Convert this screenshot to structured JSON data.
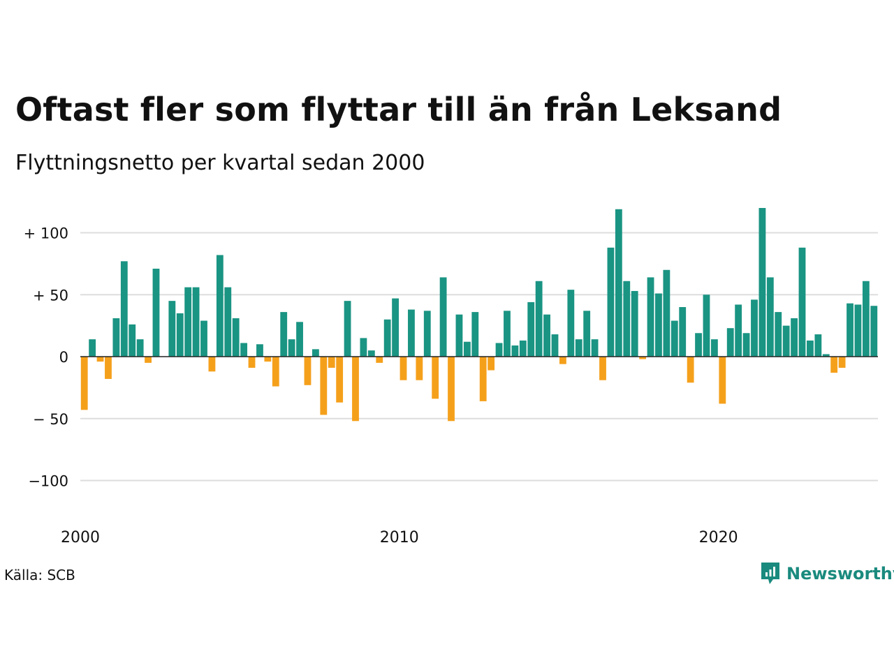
{
  "header": {
    "title": "Oftast fler som flyttar till än från Leksand",
    "subtitle": "Flyttningsnetto per kvartal sedan 2000"
  },
  "footer": {
    "source": "Källa: SCB",
    "brand": "Newsworthy",
    "brand_icon": "newsworthy-logo-icon"
  },
  "colors": {
    "positive": "#1a9483",
    "negative": "#f5a01b",
    "gridline": "#dddddd",
    "brand": "#1a8a7e"
  },
  "chart_data": {
    "type": "bar",
    "x_start": "2000 Q1",
    "frequency": "quarterly",
    "ylim": [
      -125,
      125
    ],
    "yticks": [
      {
        "value": 100,
        "label": "+ 100"
      },
      {
        "value": 50,
        "label": "+  50"
      },
      {
        "value": 0,
        "label": "0"
      },
      {
        "value": -50,
        "label": "− 50"
      },
      {
        "value": -100,
        "label": "−100"
      }
    ],
    "xticks": [
      {
        "index": 0,
        "label": "2000"
      },
      {
        "index": 40,
        "label": "2010"
      },
      {
        "index": 80,
        "label": "2020"
      }
    ],
    "values": [
      -43,
      14,
      -4,
      -18,
      31,
      77,
      26,
      14,
      -5,
      71,
      0,
      45,
      35,
      56,
      56,
      29,
      -12,
      82,
      56,
      31,
      11,
      -9,
      10,
      -4,
      -24,
      36,
      14,
      28,
      -23,
      6,
      -47,
      -9,
      -37,
      45,
      -52,
      15,
      5,
      -5,
      30,
      47,
      -19,
      38,
      -19,
      37,
      -34,
      64,
      -52,
      34,
      12,
      36,
      -36,
      -11,
      11,
      37,
      9,
      13,
      44,
      61,
      34,
      18,
      -6,
      54,
      14,
      37,
      14,
      -19,
      88,
      119,
      61,
      53,
      -2,
      64,
      51,
      70,
      29,
      40,
      -21,
      19,
      50,
      14,
      -38,
      23,
      42,
      19,
      46,
      120,
      64,
      36,
      25,
      31,
      88,
      13,
      18,
      2,
      -13,
      -9,
      43,
      42,
      61,
      41
    ]
  }
}
